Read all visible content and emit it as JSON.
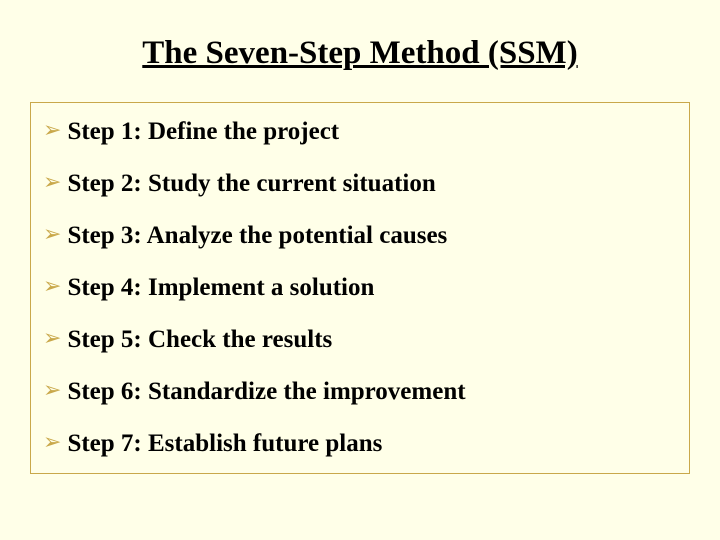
{
  "title": "The Seven-Step Method (SSM)",
  "bullet_glyph": "➢",
  "steps": [
    {
      "text": "Step 1: Define the project"
    },
    {
      "text": "Step 2: Study the current situation"
    },
    {
      "text": "Step 3: Analyze the potential causes"
    },
    {
      "text": "Step 4: Implement a solution"
    },
    {
      "text": "Step 5: Check the results"
    },
    {
      "text": "Step 6: Standardize the improvement"
    },
    {
      "text": "Step 7: Establish future plans"
    }
  ],
  "styling": {
    "background_color": "#ffffe8",
    "title_fontsize": 33,
    "title_color": "#000000",
    "title_underline": true,
    "step_fontsize": 25,
    "step_color": "#000000",
    "bullet_color": "#c9a84a",
    "box_border_color": "#c9a84a",
    "font_family": "Times New Roman"
  }
}
